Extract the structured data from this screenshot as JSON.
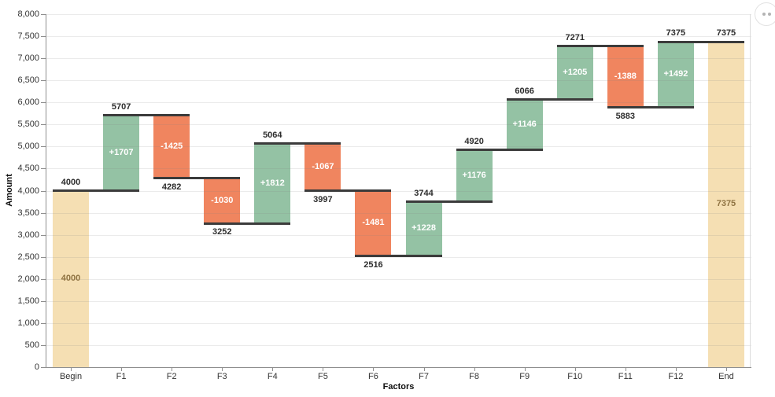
{
  "icons": {
    "menu": "ellipsis-icon"
  },
  "chart_data": {
    "type": "bar",
    "variant": "waterfall",
    "title": "",
    "xlabel": "Factors",
    "ylabel": "Amount",
    "ylim": [
      0,
      8000
    ],
    "ytick_step": 500,
    "ytick_labels": [
      "0",
      "500",
      "1,000",
      "1,500",
      "2,000",
      "2,500",
      "3,000",
      "3,500",
      "4,000",
      "4,500",
      "5,000",
      "5,500",
      "6,000",
      "6,500",
      "7,000",
      "7,500",
      "8,000"
    ],
    "grid": "horizontal",
    "legend": "none",
    "categories": [
      "Begin",
      "F1",
      "F2",
      "F3",
      "F4",
      "F5",
      "F6",
      "F7",
      "F8",
      "F9",
      "F10",
      "F11",
      "F12",
      "End"
    ],
    "bars": [
      {
        "category": "Begin",
        "kind": "total",
        "from": 0,
        "to": 4000,
        "delta": 4000,
        "inner_label": "4000",
        "outer_label": "4000",
        "outer_side": "above"
      },
      {
        "category": "F1",
        "kind": "increase",
        "from": 4000,
        "to": 5707,
        "delta": 1707,
        "inner_label": "+1707",
        "outer_label": "5707",
        "outer_side": "above"
      },
      {
        "category": "F2",
        "kind": "decrease",
        "from": 5707,
        "to": 4282,
        "delta": -1425,
        "inner_label": "-1425",
        "outer_label": "4282",
        "outer_side": "below"
      },
      {
        "category": "F3",
        "kind": "decrease",
        "from": 4282,
        "to": 3252,
        "delta": -1030,
        "inner_label": "-1030",
        "outer_label": "3252",
        "outer_side": "below"
      },
      {
        "category": "F4",
        "kind": "increase",
        "from": 3252,
        "to": 5064,
        "delta": 1812,
        "inner_label": "+1812",
        "outer_label": "5064",
        "outer_side": "above"
      },
      {
        "category": "F5",
        "kind": "decrease",
        "from": 5064,
        "to": 3997,
        "delta": -1067,
        "inner_label": "-1067",
        "outer_label": "3997",
        "outer_side": "below"
      },
      {
        "category": "F6",
        "kind": "decrease",
        "from": 3997,
        "to": 2516,
        "delta": -1481,
        "inner_label": "-1481",
        "outer_label": "2516",
        "outer_side": "below"
      },
      {
        "category": "F7",
        "kind": "increase",
        "from": 2516,
        "to": 3744,
        "delta": 1228,
        "inner_label": "+1228",
        "outer_label": "3744",
        "outer_side": "above"
      },
      {
        "category": "F8",
        "kind": "increase",
        "from": 3744,
        "to": 4920,
        "delta": 1176,
        "inner_label": "+1176",
        "outer_label": "4920",
        "outer_side": "above"
      },
      {
        "category": "F9",
        "kind": "increase",
        "from": 4920,
        "to": 6066,
        "delta": 1146,
        "inner_label": "+1146",
        "outer_label": "6066",
        "outer_side": "above"
      },
      {
        "category": "F10",
        "kind": "increase",
        "from": 6066,
        "to": 7271,
        "delta": 1205,
        "inner_label": "+1205",
        "outer_label": "7271",
        "outer_side": "above"
      },
      {
        "category": "F11",
        "kind": "decrease",
        "from": 7271,
        "to": 5883,
        "delta": -1388,
        "inner_label": "-1388",
        "outer_label": "5883",
        "outer_side": "below"
      },
      {
        "category": "F12",
        "kind": "increase",
        "from": 5883,
        "to": 7375,
        "delta": 1492,
        "inner_label": "+1492",
        "outer_label": "7375",
        "outer_side": "above"
      },
      {
        "category": "End",
        "kind": "total",
        "from": 0,
        "to": 7375,
        "delta": 7375,
        "inner_label": "7375",
        "outer_label": "7375",
        "outer_side": "above"
      }
    ],
    "colors": {
      "increase": "#94c2a4",
      "decrease": "#f0855f",
      "total": "#f5dfb3",
      "total_text": "#8f7342",
      "connector": "#3b3b3b",
      "label": "#2d2d2d",
      "axis": "#8f8f8f",
      "grid": "#e7e7e7"
    }
  }
}
